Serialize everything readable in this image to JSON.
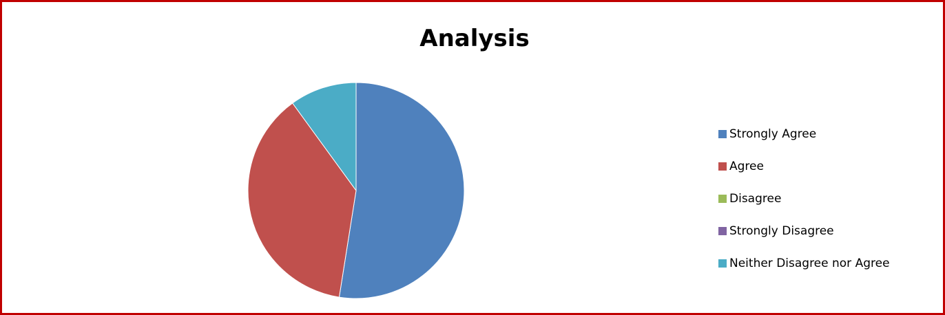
{
  "chart_data": {
    "type": "pie",
    "title": "Analysis",
    "categories": [
      "Strongly Agree",
      "Agree",
      "Disagree",
      "Strongly Disagree",
      "Neither Disagree nor Agree"
    ],
    "values": [
      52.5,
      37.5,
      0,
      0,
      10
    ],
    "colors": [
      "#4f81bd",
      "#c0504d",
      "#9bbb59",
      "#8064a2",
      "#4bacc6"
    ],
    "legend_position": "right"
  }
}
